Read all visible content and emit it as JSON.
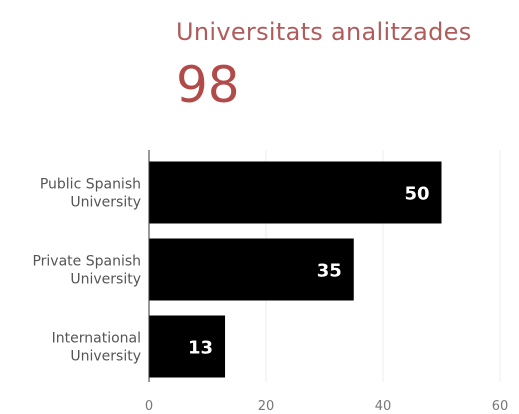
{
  "kpi": {
    "label": "Universitats analitzades",
    "value": "98"
  },
  "chart_data": {
    "type": "bar",
    "orientation": "horizontal",
    "categories": [
      [
        "Public Spanish",
        "University"
      ],
      [
        "Private Spanish",
        "University"
      ],
      [
        "International",
        "University"
      ]
    ],
    "values": [
      50,
      35,
      13
    ],
    "xlim": [
      0,
      60
    ],
    "xticks": [
      0,
      20,
      40,
      60
    ],
    "grid": true,
    "bar_color": "#000000",
    "data_label_color": "#ffffff"
  }
}
